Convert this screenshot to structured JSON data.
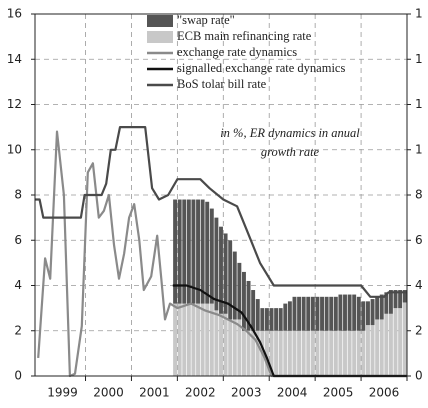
{
  "chart_data": {
    "type": "bar-line",
    "annotation": [
      "in %, ER dynamics in anual",
      "growth rate"
    ],
    "xlim": [
      1998.9,
      2007.0
    ],
    "xticks": [
      {
        "value": 1999.5,
        "label": "1999"
      },
      {
        "value": 2000.5,
        "label": "2000"
      },
      {
        "value": 2001.5,
        "label": "2001"
      },
      {
        "value": 2002.5,
        "label": "2002"
      },
      {
        "value": 2003.5,
        "label": "2003"
      },
      {
        "value": 2004.5,
        "label": "2004"
      },
      {
        "value": 2005.5,
        "label": "2005"
      },
      {
        "value": 2006.5,
        "label": "2006"
      }
    ],
    "ylim": [
      0,
      16
    ],
    "yticks": [
      0,
      2,
      4,
      6,
      8,
      10,
      12,
      14,
      16
    ],
    "y2lim": [
      0,
      16
    ],
    "y2ticks": [
      0,
      2,
      4,
      6,
      8,
      {
        "value": 10,
        "label": "1"
      },
      {
        "value": 12,
        "label": "1"
      },
      {
        "value": 14,
        "label": "1"
      },
      {
        "value": 16,
        "label": "1"
      }
    ],
    "grid": true,
    "x": [
      2001.95,
      2002.05,
      2002.15,
      2002.25,
      2002.35,
      2002.45,
      2002.55,
      2002.65,
      2002.75,
      2002.85,
      2002.95,
      2003.05,
      2003.15,
      2003.25,
      2003.35,
      2003.45,
      2003.55,
      2003.65,
      2003.75,
      2003.85,
      2003.95,
      2004.05,
      2004.15,
      2004.25,
      2004.35,
      2004.45,
      2004.55,
      2004.65,
      2004.75,
      2004.85,
      2004.95,
      2005.05,
      2005.15,
      2005.25,
      2005.35,
      2005.45,
      2005.55,
      2005.65,
      2005.75,
      2005.85,
      2005.95,
      2006.05,
      2006.15,
      2006.25,
      2006.35,
      2006.45,
      2006.55,
      2006.65,
      2006.75,
      2006.85,
      2006.95
    ],
    "series": [
      {
        "name": "\"swap rate\"",
        "kind": "bar",
        "color": "#555555",
        "values": [
          4.6,
          4.6,
          4.6,
          4.6,
          4.6,
          4.6,
          4.6,
          4.5,
          4.2,
          4.1,
          3.85,
          3.55,
          3.5,
          3.0,
          2.5,
          2.6,
          2.2,
          1.8,
          1.4,
          1.0,
          1.0,
          1.0,
          1.0,
          1.0,
          1.2,
          1.3,
          1.5,
          1.5,
          1.5,
          1.5,
          1.5,
          1.5,
          1.5,
          1.5,
          1.5,
          1.5,
          1.6,
          1.6,
          1.6,
          1.6,
          1.5,
          1.3,
          1.05,
          1.15,
          1.0,
          1.1,
          0.95,
          1.05,
          0.8,
          0.8,
          0.55
        ]
      },
      {
        "name": "ECB main refinancing rate",
        "kind": "bar",
        "color": "#c8c8c8",
        "values": [
          3.2,
          3.2,
          3.2,
          3.2,
          3.2,
          3.2,
          3.2,
          3.2,
          3.2,
          2.9,
          2.75,
          2.75,
          2.5,
          2.5,
          2.5,
          2.0,
          2.0,
          2.0,
          2.0,
          2.0,
          2.0,
          2.0,
          2.0,
          2.0,
          2.0,
          2.0,
          2.0,
          2.0,
          2.0,
          2.0,
          2.0,
          2.0,
          2.0,
          2.0,
          2.0,
          2.0,
          2.0,
          2.0,
          2.0,
          2.0,
          2.0,
          2.0,
          2.25,
          2.25,
          2.5,
          2.5,
          2.75,
          2.75,
          3.0,
          3.0,
          3.25
        ]
      },
      {
        "name": "exchange rate dynamics",
        "kind": "line",
        "color": "#8a8a8a",
        "x": [
          1998.97,
          1999.12,
          1999.23,
          1999.38,
          1999.53,
          1999.66,
          1999.77,
          1999.92,
          2000.05,
          2000.16,
          2000.29,
          2000.4,
          2000.51,
          2000.62,
          2000.73,
          2000.84,
          2000.95,
          2001.06,
          2001.17,
          2001.27,
          2001.43,
          2001.56,
          2001.65,
          2001.73,
          2001.84,
          2002.0,
          2002.3,
          2002.6,
          2002.9,
          2003.1,
          2003.3,
          2003.5,
          2003.7,
          2003.9,
          2004.05,
          2007.0
        ],
        "values": [
          0.8,
          5.2,
          4.3,
          10.8,
          8.0,
          0,
          0.1,
          2.2,
          9.0,
          9.4,
          7.0,
          7.3,
          8.0,
          5.8,
          4.3,
          5.4,
          7.0,
          7.6,
          6.0,
          3.8,
          4.4,
          6.2,
          4.3,
          2.5,
          3.2,
          3.0,
          3.2,
          2.9,
          2.7,
          2.5,
          2.3,
          2.0,
          1.6,
          0.8,
          0,
          0
        ]
      },
      {
        "name": "signalled exchange rate dynamics",
        "kind": "line",
        "color": "#111111",
        "x": [
          2001.9,
          2002.2,
          2002.5,
          2002.8,
          2003.1,
          2003.4,
          2003.6,
          2003.8,
          2003.95,
          2004.1,
          2007.0
        ],
        "values": [
          4.0,
          4.0,
          3.8,
          3.4,
          3.2,
          2.8,
          2.2,
          1.5,
          0.8,
          0,
          0
        ]
      },
      {
        "name": "BoS tolar bill rate",
        "kind": "line",
        "color": "#4a4a4a",
        "x": [
          1998.9,
          1999.0,
          1999.08,
          1999.9,
          1999.98,
          2000.35,
          2000.45,
          2000.55,
          2000.65,
          2000.75,
          2001.3,
          2001.45,
          2001.6,
          2001.8,
          2002.0,
          2002.5,
          2002.7,
          2003.0,
          2003.3,
          2003.5,
          2003.8,
          2004.1,
          2006.0,
          2006.2,
          2006.5,
          2006.6,
          2007.0
        ],
        "values": [
          7.8,
          7.8,
          7.0,
          7.0,
          8.0,
          8.0,
          8.5,
          10.0,
          10.0,
          11.0,
          11.0,
          8.3,
          7.8,
          8.0,
          8.7,
          8.7,
          8.3,
          7.8,
          7.5,
          6.5,
          5.0,
          4.0,
          4.0,
          3.5,
          3.5,
          3.7,
          3.7
        ]
      }
    ]
  }
}
